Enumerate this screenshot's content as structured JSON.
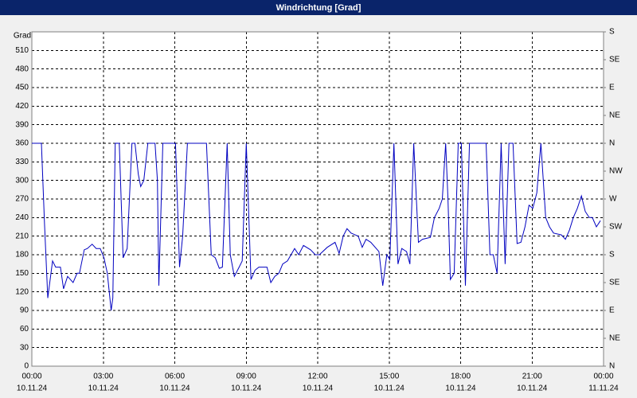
{
  "chart_data": {
    "type": "line",
    "title": "Windrichtung [Grad]",
    "y_label": "Grad",
    "xlim": [
      0,
      24
    ],
    "xticks": [
      {
        "value": 0,
        "label": "00:00"
      },
      {
        "value": 3,
        "label": "03:00"
      },
      {
        "value": 6,
        "label": "06:00"
      },
      {
        "value": 9,
        "label": "09:00"
      },
      {
        "value": 12,
        "label": "12:00"
      },
      {
        "value": 15,
        "label": "15:00"
      },
      {
        "value": 18,
        "label": "18:00"
      },
      {
        "value": 21,
        "label": "21:00"
      },
      {
        "value": 24,
        "label": "00:00"
      }
    ],
    "xtick_dates": [
      "10.11.24",
      "10.11.24",
      "10.11.24",
      "10.11.24",
      "10.11.24",
      "10.11.24",
      "10.11.24",
      "10.11.24",
      "11.11.24"
    ],
    "ylim": [
      0,
      540
    ],
    "yticks": [
      0,
      30,
      60,
      90,
      120,
      150,
      180,
      210,
      240,
      270,
      300,
      330,
      360,
      390,
      420,
      450,
      480,
      510
    ],
    "y2lim": [
      0,
      540
    ],
    "y2ticks": [
      {
        "value": 0,
        "label": "N"
      },
      {
        "value": 45,
        "label": "NE"
      },
      {
        "value": 90,
        "label": "E"
      },
      {
        "value": 135,
        "label": "SE"
      },
      {
        "value": 180,
        "label": "S"
      },
      {
        "value": 225,
        "label": "SW"
      },
      {
        "value": 270,
        "label": "W"
      },
      {
        "value": 315,
        "label": "NW"
      },
      {
        "value": 360,
        "label": "N"
      },
      {
        "value": 405,
        "label": "NE"
      },
      {
        "value": 450,
        "label": "E"
      },
      {
        "value": 495,
        "label": "SE"
      },
      {
        "value": 540,
        "label": "S"
      }
    ],
    "grid": true,
    "color": "#0000c0",
    "x": [
      0,
      0.4,
      0.53,
      0.67,
      0.87,
      1.0,
      1.2,
      1.33,
      1.5,
      1.73,
      1.9,
      2.0,
      2.2,
      2.33,
      2.53,
      2.7,
      2.87,
      3.03,
      3.17,
      3.33,
      3.4,
      3.5,
      3.67,
      3.83,
      4.0,
      4.2,
      4.33,
      4.47,
      4.57,
      4.7,
      4.87,
      5.17,
      5.27,
      5.33,
      5.5,
      6.03,
      6.2,
      6.33,
      6.53,
      7.33,
      7.53,
      7.7,
      7.87,
      8.0,
      8.2,
      8.33,
      8.5,
      8.7,
      8.83,
      9.0,
      9.2,
      9.37,
      9.53,
      9.87,
      10.03,
      10.2,
      10.37,
      10.53,
      10.73,
      11.03,
      11.2,
      11.4,
      11.7,
      11.9,
      12.07,
      12.4,
      12.73,
      12.9,
      13.07,
      13.23,
      13.4,
      13.7,
      13.87,
      14.03,
      14.23,
      14.57,
      14.73,
      14.9,
      15.03,
      15.2,
      15.37,
      15.53,
      15.73,
      15.87,
      16.03,
      16.23,
      16.4,
      16.73,
      16.9,
      17.1,
      17.23,
      17.37,
      17.47,
      17.57,
      17.73,
      17.9,
      18.03,
      18.2,
      18.37,
      19.07,
      19.23,
      19.37,
      19.53,
      19.7,
      19.87,
      20.03,
      20.2,
      20.37,
      20.53,
      20.7,
      20.87,
      21.03,
      21.2,
      21.37,
      21.57,
      21.73,
      21.9,
      22.23,
      22.4,
      22.57,
      22.73,
      22.9,
      23.07,
      23.23,
      23.4,
      23.53,
      23.7,
      23.87
    ],
    "values": [
      360,
      360,
      230,
      110,
      170,
      160,
      160,
      125,
      145,
      135,
      150,
      150,
      188,
      190,
      197,
      190,
      190,
      175,
      150,
      90,
      110,
      360,
      360,
      175,
      190,
      360,
      360,
      310,
      290,
      300,
      360,
      360,
      300,
      130,
      360,
      360,
      160,
      210,
      360,
      360,
      180,
      175,
      158,
      160,
      360,
      180,
      145,
      160,
      170,
      360,
      140,
      155,
      160,
      160,
      135,
      145,
      150,
      165,
      170,
      190,
      180,
      195,
      188,
      180,
      180,
      192,
      200,
      182,
      210,
      222,
      215,
      210,
      192,
      205,
      200,
      185,
      130,
      180,
      172,
      360,
      165,
      190,
      185,
      165,
      360,
      200,
      205,
      208,
      240,
      255,
      270,
      360,
      270,
      140,
      150,
      360,
      360,
      130,
      360,
      360,
      180,
      180,
      150,
      360,
      165,
      360,
      360,
      198,
      200,
      225,
      260,
      255,
      280,
      360,
      240,
      225,
      215,
      212,
      205,
      220,
      240,
      255,
      275,
      250,
      240,
      240,
      225,
      235
    ]
  }
}
